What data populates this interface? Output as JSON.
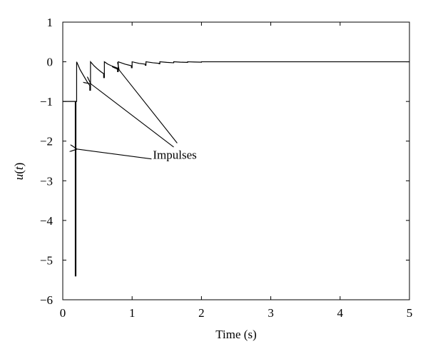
{
  "chart_data": {
    "type": "line",
    "title": "",
    "xlabel": "Time (s)",
    "ylabel_prefix": "u",
    "ylabel_arg": "t",
    "xlim": [
      0,
      5
    ],
    "ylim": [
      -6,
      1
    ],
    "xticks": [
      0,
      1,
      2,
      3,
      4,
      5
    ],
    "yticks": [
      1,
      0,
      -1,
      -2,
      -3,
      -4,
      -5,
      -6
    ],
    "xtick_labels": [
      "0",
      "1",
      "2",
      "3",
      "4",
      "5"
    ],
    "ytick_labels": [
      "1",
      "0",
      "−1",
      "−2",
      "−3",
      "−4",
      "−5",
      "−6"
    ],
    "grid": false,
    "legend": "none",
    "line_color": "#000000",
    "series": [
      {
        "points": [
          [
            0,
            -1.0
          ],
          [
            0.18,
            -1.0
          ],
          [
            0.18,
            -5.4
          ],
          [
            0.19,
            -5.4
          ],
          [
            0.19,
            -1.0
          ],
          [
            0.2,
            -1.0
          ],
          [
            0.2,
            -0.0
          ],
          [
            0.225,
            -0.1
          ],
          [
            0.25,
            -0.2
          ],
          [
            0.3,
            -0.35
          ],
          [
            0.35,
            -0.5
          ],
          [
            0.39,
            -0.6
          ],
          [
            0.39,
            -0.72
          ],
          [
            0.4,
            -0.72
          ],
          [
            0.4,
            0.0
          ],
          [
            0.45,
            -0.1
          ],
          [
            0.5,
            -0.18
          ],
          [
            0.55,
            -0.25
          ],
          [
            0.59,
            -0.3
          ],
          [
            0.59,
            -0.4
          ],
          [
            0.6,
            -0.4
          ],
          [
            0.6,
            0.0
          ],
          [
            0.65,
            -0.06
          ],
          [
            0.7,
            -0.1
          ],
          [
            0.79,
            -0.16
          ],
          [
            0.79,
            -0.25
          ],
          [
            0.8,
            -0.25
          ],
          [
            0.8,
            0.0
          ],
          [
            0.9,
            -0.06
          ],
          [
            0.99,
            -0.1
          ],
          [
            0.99,
            -0.15
          ],
          [
            1.0,
            -0.15
          ],
          [
            1.0,
            0.0
          ],
          [
            1.1,
            -0.04
          ],
          [
            1.19,
            -0.06
          ],
          [
            1.19,
            -0.09
          ],
          [
            1.2,
            -0.09
          ],
          [
            1.2,
            0.0
          ],
          [
            1.3,
            -0.025
          ],
          [
            1.39,
            -0.04
          ],
          [
            1.39,
            -0.05
          ],
          [
            1.4,
            -0.05
          ],
          [
            1.4,
            0.0
          ],
          [
            1.5,
            -0.015
          ],
          [
            1.59,
            -0.025
          ],
          [
            1.6,
            -0.025
          ],
          [
            1.6,
            0.0
          ],
          [
            1.7,
            -0.01
          ],
          [
            1.79,
            -0.015
          ],
          [
            1.8,
            -0.015
          ],
          [
            1.8,
            0.0
          ],
          [
            1.9,
            -0.005
          ],
          [
            2.0,
            -0.01
          ],
          [
            2.0,
            0.0
          ],
          [
            2.5,
            0.0
          ],
          [
            5.0,
            0.0
          ]
        ]
      }
    ],
    "annotation": {
      "text": "Impulses",
      "text_at": [
        1.3,
        -2.45
      ],
      "arrows": [
        {
          "from": [
            1.28,
            -2.45
          ],
          "to": [
            0.2,
            -2.2
          ]
        },
        {
          "from": [
            1.6,
            -2.15
          ],
          "to": [
            0.4,
            -0.55
          ]
        },
        {
          "from": [
            1.65,
            -2.05
          ],
          "to": [
            0.81,
            -0.2
          ]
        }
      ]
    }
  }
}
